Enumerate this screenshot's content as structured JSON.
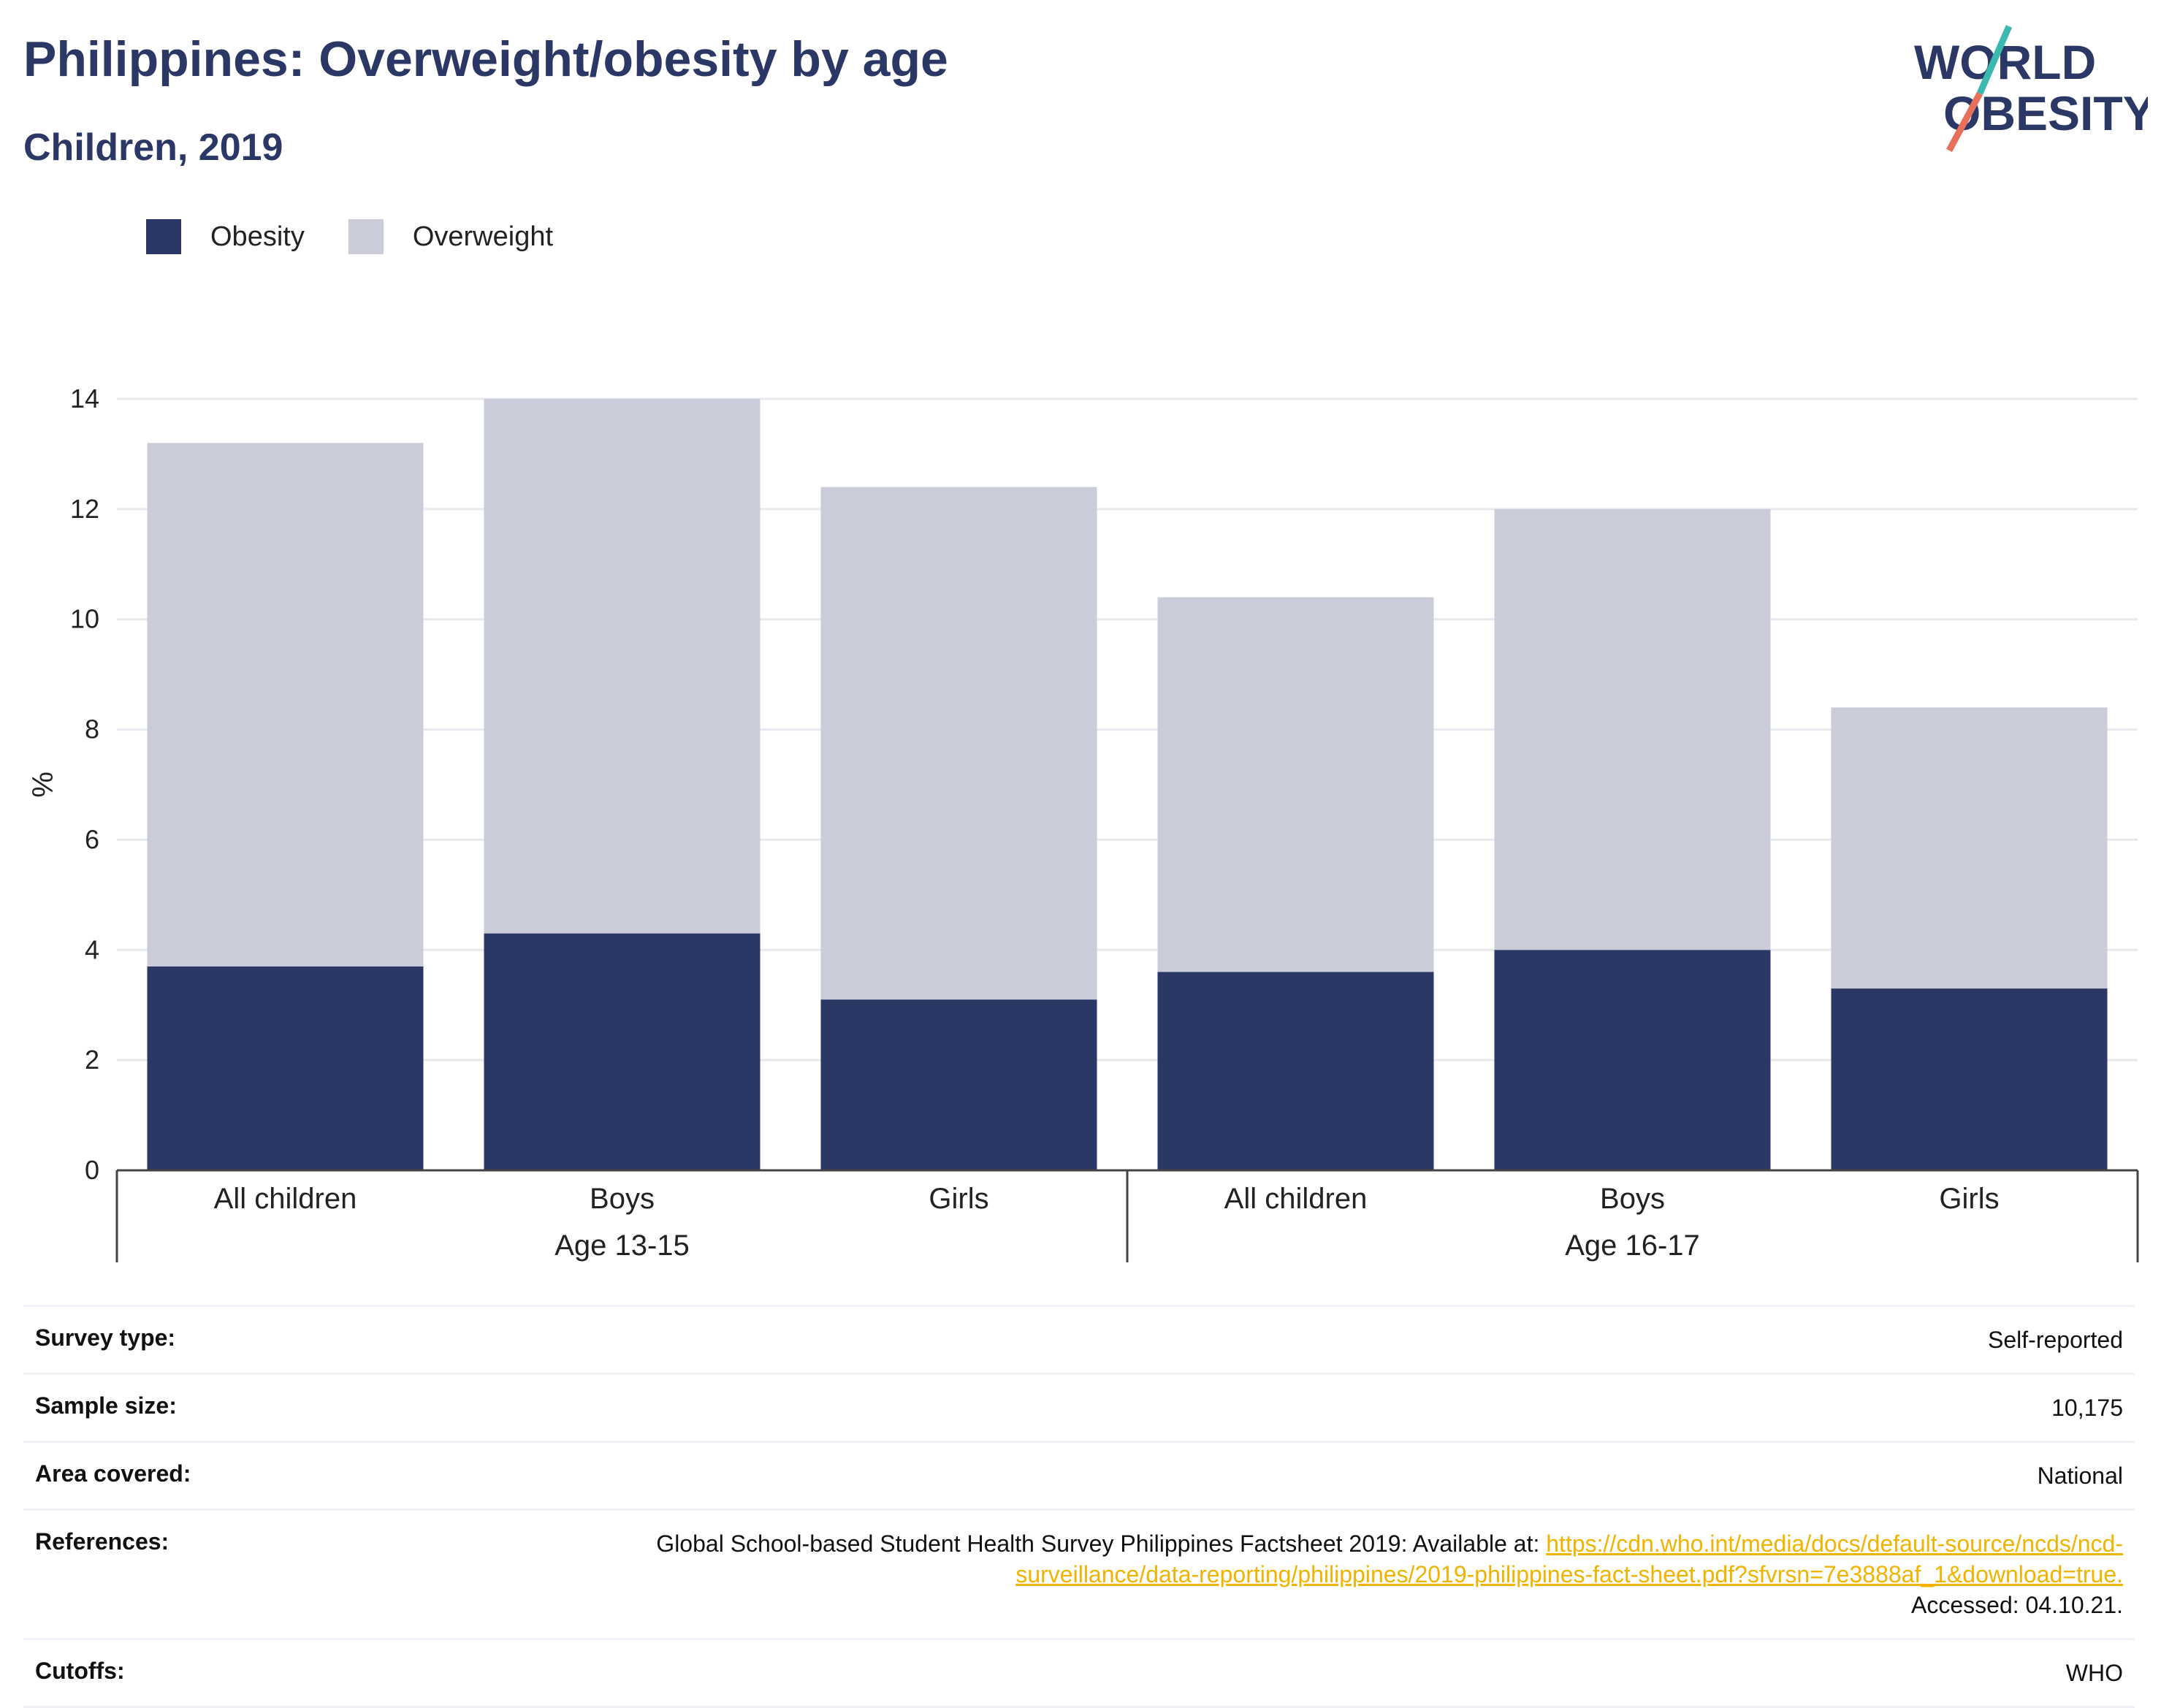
{
  "header": {
    "title": "Philippines: Overweight/obesity by age",
    "subtitle": "Children, 2019"
  },
  "logo": {
    "line1": "WORLD",
    "line2": "OBESITY",
    "icon": "world-obesity-slash-logo"
  },
  "colors": {
    "obesity": "#2b3764",
    "overweight": "#cacdd9",
    "link": "#f0b400",
    "title": "#2b3764"
  },
  "chart_data": {
    "type": "bar",
    "stacked": true,
    "ylabel": "%",
    "ylim": [
      0,
      14
    ],
    "yticks": [
      0,
      2,
      4,
      6,
      8,
      10,
      12,
      14
    ],
    "grid": true,
    "legend_position": "top-left",
    "categories": [
      "All children",
      "Boys",
      "Girls",
      "All children",
      "Boys",
      "Girls"
    ],
    "groups": [
      {
        "label": "Age 13-15",
        "categories": [
          "All children",
          "Boys",
          "Girls"
        ]
      },
      {
        "label": "Age 16-17",
        "categories": [
          "All children",
          "Boys",
          "Girls"
        ]
      }
    ],
    "series": [
      {
        "name": "Obesity",
        "values": [
          3.7,
          4.3,
          3.1,
          3.6,
          4.0,
          3.3
        ]
      },
      {
        "name": "Overweight",
        "values": [
          9.5,
          9.7,
          9.3,
          6.8,
          8.0,
          5.1
        ]
      }
    ],
    "totals": [
      13.2,
      14.0,
      12.4,
      10.4,
      12.0,
      8.4
    ]
  },
  "info": {
    "survey_type_label": "Survey type:",
    "survey_type_value": "Self-reported",
    "sample_size_label": "Sample size:",
    "sample_size_value": "10,175",
    "area_label": "Area covered:",
    "area_value": "National",
    "references_label": "References:",
    "references_text": "Global School-based Student Health Survey Philippines Factsheet 2019: Available at: ",
    "references_link": "https://cdn.who.int/media/docs/default-source/ncds/ncd-surveillance/data-reporting/philippines/2019-philippines-fact-sheet.pdf?sfvrsn=7e3888af_1&download=true.",
    "references_accessed": "Accessed: 04.10.21.",
    "cutoffs_label": "Cutoffs:",
    "cutoffs_value": "WHO"
  }
}
